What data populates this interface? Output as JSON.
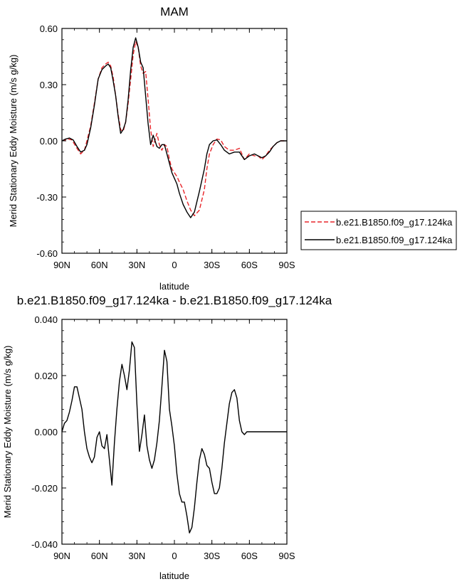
{
  "chart_data": [
    {
      "type": "line",
      "title": "MAM",
      "xlabel": "latitude",
      "ylabel": "Merid Stationary Eddy Moisture (m/s g/kg)",
      "xlim": [
        90,
        -90
      ],
      "ylim": [
        -0.6,
        0.6
      ],
      "x_ticks": [
        90,
        60,
        30,
        0,
        -30,
        -60,
        -90
      ],
      "x_tick_labels": [
        "90N",
        "60N",
        "30N",
        "0",
        "30S",
        "60S",
        "90S"
      ],
      "y_ticks": [
        0.6,
        0.3,
        0.0,
        -0.3,
        -0.6
      ],
      "y_tick_labels": [
        "0.60",
        "0.30",
        "0.00",
        "-0.30",
        "-0.60"
      ],
      "grid": false,
      "legend_position": "right-outside",
      "series": [
        {
          "name": "b.e21.B1850.f09_g17.124ka",
          "color": "#e8252a",
          "dash": "dashed",
          "x": [
            90,
            85,
            82,
            78,
            75,
            72,
            70,
            67,
            64,
            61,
            58,
            55,
            53,
            51,
            49,
            47,
            45,
            43,
            41,
            39,
            37,
            35,
            33,
            31,
            29,
            27,
            25,
            23,
            21,
            19,
            17,
            14,
            12,
            10,
            8,
            6,
            4,
            2,
            0,
            -2,
            -4,
            -7,
            -10,
            -13,
            -16,
            -20,
            -24,
            -26,
            -28,
            -31,
            -34,
            -37,
            -40,
            -44,
            -48,
            -52,
            -56,
            -60,
            -64,
            -67,
            -70,
            -73,
            -76,
            -79,
            -82,
            -85,
            -88,
            -90
          ],
          "y": [
            0.0,
            0.01,
            0.005,
            -0.04,
            -0.07,
            -0.05,
            0.0,
            0.08,
            0.2,
            0.33,
            0.39,
            0.41,
            0.42,
            0.4,
            0.34,
            0.24,
            0.14,
            0.06,
            0.05,
            0.1,
            0.2,
            0.33,
            0.46,
            0.53,
            0.5,
            0.4,
            0.36,
            0.37,
            0.22,
            0.06,
            -0.03,
            0.04,
            -0.02,
            -0.05,
            -0.02,
            -0.03,
            -0.1,
            -0.15,
            -0.17,
            -0.19,
            -0.22,
            -0.26,
            -0.32,
            -0.37,
            -0.4,
            -0.37,
            -0.26,
            -0.15,
            -0.07,
            -0.02,
            0.01,
            0.005,
            -0.03,
            -0.05,
            -0.05,
            -0.04,
            -0.1,
            -0.07,
            -0.08,
            -0.08,
            -0.1,
            -0.08,
            -0.05,
            -0.03,
            -0.01,
            0.0,
            0.0,
            0.0
          ]
        },
        {
          "name": "b.e21.B1850.f09_g17.124ka",
          "color": "#000000",
          "dash": "solid",
          "x": [
            90,
            87,
            84,
            81,
            78,
            75,
            72,
            70,
            67,
            64,
            61,
            58,
            55,
            53,
            51,
            49,
            47,
            45,
            43,
            41,
            39,
            37,
            35,
            33,
            31,
            29,
            27,
            25,
            23,
            21,
            19,
            17,
            14,
            12,
            10,
            8,
            6,
            4,
            2,
            0,
            -2,
            -4,
            -7,
            -10,
            -13,
            -16,
            -20,
            -24,
            -26,
            -28,
            -31,
            -34,
            -37,
            -40,
            -44,
            -48,
            -52,
            -56,
            -60,
            -64,
            -67,
            -70,
            -73,
            -76,
            -79,
            -82,
            -85,
            -88,
            -90
          ],
          "y": [
            0.0,
            0.01,
            0.015,
            0.005,
            -0.03,
            -0.06,
            -0.05,
            -0.02,
            0.07,
            0.19,
            0.33,
            0.38,
            0.4,
            0.41,
            0.39,
            0.32,
            0.24,
            0.13,
            0.04,
            0.06,
            0.1,
            0.22,
            0.38,
            0.5,
            0.55,
            0.5,
            0.42,
            0.39,
            0.24,
            0.09,
            -0.02,
            0.03,
            -0.03,
            -0.04,
            -0.02,
            -0.02,
            -0.07,
            -0.12,
            -0.17,
            -0.2,
            -0.23,
            -0.28,
            -0.34,
            -0.38,
            -0.41,
            -0.38,
            -0.27,
            -0.15,
            -0.07,
            -0.02,
            0.0,
            0.005,
            -0.02,
            -0.05,
            -0.07,
            -0.06,
            -0.06,
            -0.1,
            -0.08,
            -0.07,
            -0.08,
            -0.09,
            -0.08,
            -0.06,
            -0.03,
            -0.01,
            0.0,
            0.0,
            0.0
          ]
        }
      ]
    },
    {
      "type": "line",
      "title": "b.e21.B1850.f09_g17.124ka - b.e21.B1850.f09_g17.124ka",
      "xlabel": "latitude",
      "ylabel": "Merid Stationary Eddy Moisture (m/s g/kg)",
      "xlim": [
        90,
        -90
      ],
      "ylim": [
        -0.04,
        0.04
      ],
      "x_ticks": [
        90,
        60,
        30,
        0,
        -30,
        -60,
        -90
      ],
      "x_tick_labels": [
        "90N",
        "60N",
        "30N",
        "0",
        "30S",
        "60S",
        "90S"
      ],
      "y_ticks": [
        0.04,
        0.02,
        0.0,
        -0.02,
        -0.04
      ],
      "y_tick_labels": [
        "0.040",
        "0.020",
        "0.000",
        "-0.020",
        "-0.040"
      ],
      "grid": false,
      "series": [
        {
          "color": "#000000",
          "dash": "solid",
          "x": [
            90,
            88,
            86,
            84,
            82,
            80,
            78,
            76,
            74,
            72,
            70,
            68,
            66,
            64,
            62,
            60,
            58,
            56,
            54,
            52,
            50,
            48,
            46,
            44,
            42,
            40,
            38,
            36,
            34,
            32,
            30,
            28,
            26,
            24,
            22,
            20,
            18,
            16,
            14,
            12,
            10,
            8,
            6,
            4,
            2,
            0,
            -2,
            -4,
            -6,
            -8,
            -10,
            -12,
            -14,
            -16,
            -18,
            -20,
            -22,
            -24,
            -26,
            -28,
            -30,
            -32,
            -34,
            -36,
            -38,
            -40,
            -42,
            -44,
            -46,
            -48,
            -50,
            -52,
            -54,
            -56,
            -58,
            -60,
            -62,
            -64,
            -66,
            -68,
            -70,
            -72,
            -74,
            -76,
            -78,
            -80,
            -82,
            -84,
            -86,
            -88,
            -90
          ],
          "y": [
            0.0,
            0.003,
            0.004,
            0.007,
            0.011,
            0.016,
            0.016,
            0.012,
            0.008,
            0.0,
            -0.006,
            -0.009,
            -0.011,
            -0.009,
            -0.002,
            0.0,
            -0.005,
            -0.006,
            -0.001,
            -0.01,
            -0.019,
            -0.004,
            0.008,
            0.018,
            0.024,
            0.02,
            0.015,
            0.022,
            0.032,
            0.03,
            0.01,
            -0.007,
            -0.001,
            0.006,
            -0.005,
            -0.01,
            -0.013,
            -0.01,
            -0.004,
            0.004,
            0.016,
            0.029,
            0.025,
            0.008,
            0.002,
            -0.005,
            -0.015,
            -0.022,
            -0.025,
            -0.025,
            -0.03,
            -0.036,
            -0.034,
            -0.027,
            -0.018,
            -0.01,
            -0.006,
            -0.008,
            -0.012,
            -0.013,
            -0.018,
            -0.022,
            -0.022,
            -0.02,
            -0.013,
            -0.004,
            0.003,
            0.01,
            0.014,
            0.015,
            0.012,
            0.004,
            0.0,
            -0.001,
            0.0,
            0.0,
            0.0,
            0.0,
            0.0,
            0.0,
            0.0,
            0.0,
            0.0,
            0.0,
            0.0,
            0.0,
            0.0,
            0.0,
            0.0,
            0.0,
            0.0
          ]
        }
      ]
    }
  ]
}
